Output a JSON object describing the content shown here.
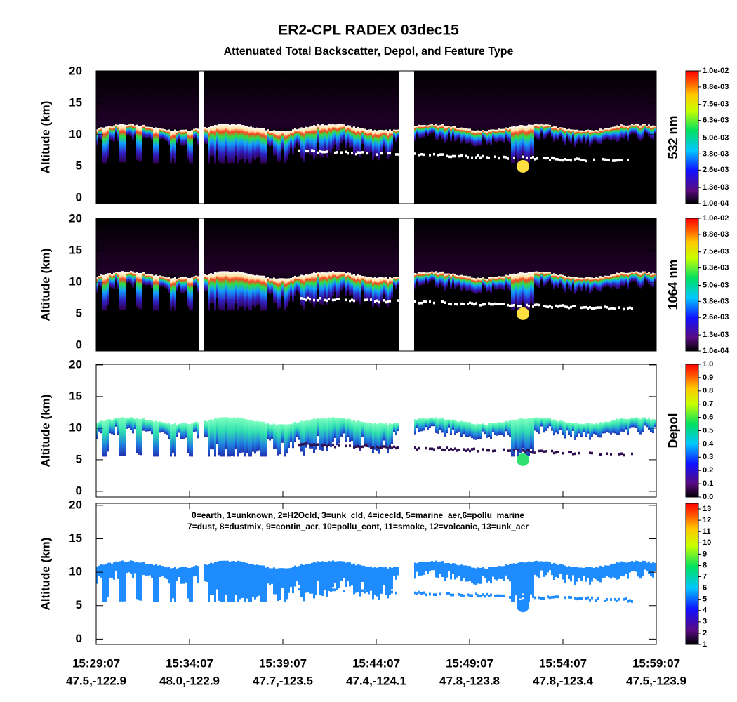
{
  "title": "ER2-CPL RADEX 03dec15",
  "subtitle": "Attenuated Total Backscatter, Depol, and Feature Type",
  "x_axis": {
    "times": [
      "15:29:07",
      "15:34:07",
      "15:39:07",
      "15:44:07",
      "15:49:07",
      "15:54:07",
      "15:59:07"
    ],
    "locations": [
      "47.5,-122.9",
      "48.0,-122.9",
      "47.7,-123.5",
      "47.4,-124.1",
      "47.8,-123.8",
      "47.8,-123.4",
      "47.5,-123.9"
    ]
  },
  "chart_data": [
    {
      "type": "backscatter",
      "ylabel": "Altitude (km)",
      "ylim": [
        -0.9,
        20.1
      ],
      "yticks": [
        0,
        5,
        10,
        15,
        20
      ],
      "colorbar_label": "532 nm",
      "clim": [
        0.0001,
        0.01
      ],
      "cticks": [
        {
          "value": 0.0001,
          "label": "1.0e-04"
        },
        {
          "value": 0.0013,
          "label": "1.3e-03"
        },
        {
          "value": 0.0026,
          "label": "2.6e-03"
        },
        {
          "value": 0.0038,
          "label": "3.8e-03"
        },
        {
          "value": 0.005,
          "label": "5.0e-03"
        },
        {
          "value": 0.0063,
          "label": "6.3e-03"
        },
        {
          "value": 0.0075,
          "label": "7.5e-03"
        },
        {
          "value": 0.0088,
          "label": "8.8e-03"
        },
        {
          "value": 0.01,
          "label": "1.0e-02"
        }
      ]
    },
    {
      "type": "backscatter",
      "ylabel": "Altitude (km)",
      "ylim": [
        -0.9,
        20.1
      ],
      "yticks": [
        0,
        5,
        10,
        15,
        20
      ],
      "colorbar_label": "1064 nm",
      "clim": [
        0.0001,
        0.01
      ],
      "cticks": [
        {
          "value": 0.0001,
          "label": "1.0e-04"
        },
        {
          "value": 0.0013,
          "label": "1.3e-03"
        },
        {
          "value": 0.0026,
          "label": "2.6e-03"
        },
        {
          "value": 0.0038,
          "label": "3.8e-03"
        },
        {
          "value": 0.005,
          "label": "5.0e-03"
        },
        {
          "value": 0.0063,
          "label": "6.3e-03"
        },
        {
          "value": 0.0075,
          "label": "7.5e-03"
        },
        {
          "value": 0.0088,
          "label": "8.8e-03"
        },
        {
          "value": 0.01,
          "label": "1.0e-02"
        }
      ]
    },
    {
      "type": "depol",
      "ylabel": "Altitude (km)",
      "ylim": [
        -0.9,
        20.1
      ],
      "yticks": [
        0,
        5,
        10,
        15,
        20
      ],
      "colorbar_label": "Depol",
      "clim": [
        0,
        1
      ],
      "cticks": [
        {
          "value": 0,
          "label": "0.0"
        },
        0.1,
        0.2,
        0.3,
        0.4,
        0.5,
        0.6,
        0.7,
        0.8,
        0.9,
        {
          "value": 1,
          "label": "1.0"
        }
      ]
    },
    {
      "type": "feature",
      "ylabel": "Altitude (km)",
      "ylim": [
        -0.8,
        20.3
      ],
      "yticks": [
        0,
        5,
        10,
        15,
        20
      ],
      "clim": [
        1,
        13.5
      ],
      "cticks": [
        1,
        2,
        3,
        4,
        5,
        6,
        7,
        8,
        9,
        10,
        11,
        12,
        13
      ],
      "annotations": [
        "0=earth, 1=unknown, 2=H2Ocld, 3=unk_cld, 4=icecld, 5=marine_aer,6=pollu_marine",
        "7=dust, 8=dustmix, 9=contin_aer, 10=pollu_cont, 11=smoke, 12=volcanic, 13=unk_aer"
      ]
    }
  ]
}
